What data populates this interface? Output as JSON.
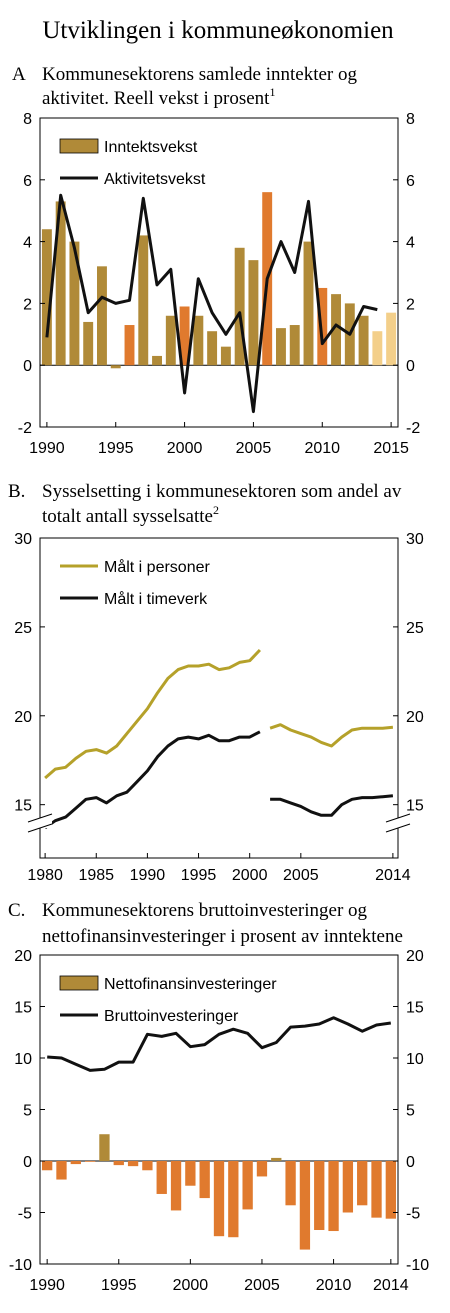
{
  "page_title": "Utviklingen i kommuneøkonomien",
  "colors": {
    "bar_gold": "#b08a38",
    "bar_orange": "#e07a2e",
    "bar_light": "#f3cf8a",
    "line_black": "#111111",
    "line_olive": "#b5a12a",
    "border": "#000000"
  },
  "chart_data": [
    {
      "id": "A",
      "type": "bar",
      "panel_letter": "A",
      "title_line1": "Kommunesektorens samlede inntekter og",
      "title_line2": "aktivitet. Reell vekst i prosent",
      "title_sup": "1",
      "ylim": [
        -2,
        8
      ],
      "yticks": [
        -2,
        0,
        2,
        4,
        6,
        8
      ],
      "xlim": [
        1989.5,
        2015.5
      ],
      "xticks": [
        1990,
        1995,
        2000,
        2005,
        2010,
        2015
      ],
      "legend_placement": "top-left",
      "categories": [
        1990,
        1991,
        1992,
        1993,
        1994,
        1995,
        1996,
        1997,
        1998,
        1999,
        2000,
        2001,
        2002,
        2003,
        2004,
        2005,
        2006,
        2007,
        2008,
        2009,
        2010,
        2011,
        2012,
        2013,
        2014,
        2015
      ],
      "series": [
        {
          "name": "Inntektsvekst",
          "kind": "bar",
          "values": [
            4.4,
            5.3,
            4.0,
            1.4,
            3.2,
            -0.1,
            1.3,
            4.2,
            0.3,
            1.6,
            1.9,
            1.6,
            1.1,
            0.6,
            3.8,
            3.4,
            5.6,
            1.2,
            1.3,
            4.0,
            2.5,
            2.3,
            2.0,
            1.6,
            1.1,
            1.7
          ],
          "colors": [
            "gold",
            "gold",
            "gold",
            "gold",
            "gold",
            "gold",
            "orange",
            "gold",
            "gold",
            "gold",
            "orange",
            "gold",
            "gold",
            "gold",
            "gold",
            "gold",
            "orange",
            "gold",
            "gold",
            "gold",
            "orange",
            "gold",
            "gold",
            "gold",
            "light",
            "light"
          ]
        },
        {
          "name": "Aktivitetsvekst",
          "kind": "line",
          "values": [
            0.9,
            5.5,
            3.8,
            1.7,
            2.2,
            2.0,
            2.1,
            5.4,
            2.6,
            3.1,
            -0.9,
            2.8,
            1.7,
            1.0,
            1.7,
            -1.5,
            2.8,
            4.0,
            3.0,
            5.3,
            0.7,
            1.3,
            1.0,
            1.9,
            1.8,
            null
          ]
        }
      ]
    },
    {
      "id": "B",
      "type": "line",
      "panel_letter": "B.",
      "title_line1": "Sysselsetting i kommunesektoren som andel av",
      "title_line2": "totalt antall sysselsatte",
      "title_sup": "2",
      "ylim": [
        12,
        30
      ],
      "yticks": [
        15,
        20,
        25,
        30
      ],
      "axis_break": true,
      "xlim": [
        1979.5,
        2014.5
      ],
      "xticks": [
        1980,
        1985,
        1990,
        1995,
        2000,
        2005,
        2014
      ],
      "legend_placement": "top-left",
      "series": [
        {
          "name": "Målt i personer",
          "color_key": "line_olive",
          "segments": [
            {
              "x": [
                1980,
                1981,
                1982,
                1983,
                1984,
                1985,
                1986,
                1987,
                1988,
                1989,
                1990,
                1991,
                1992,
                1993,
                1994,
                1995,
                1996,
                1997,
                1998,
                1999,
                2000,
                2001
              ],
              "y": [
                16.5,
                17.0,
                17.1,
                17.6,
                18.0,
                18.1,
                17.9,
                18.3,
                19.0,
                19.7,
                20.4,
                21.3,
                22.1,
                22.6,
                22.8,
                22.8,
                22.9,
                22.6,
                22.7,
                23.0,
                23.1,
                23.7
              ]
            },
            {
              "x": [
                2002,
                2003,
                2004,
                2005,
                2006,
                2007,
                2008,
                2009,
                2010,
                2011,
                2012,
                2013,
                2014
              ],
              "y": [
                19.3,
                19.5,
                19.2,
                19.0,
                18.8,
                18.5,
                18.3,
                18.8,
                19.2,
                19.3,
                19.3,
                19.3,
                19.35
              ]
            }
          ]
        },
        {
          "name": "Målt i timeverk",
          "color_key": "line_black",
          "segments": [
            {
              "x": [
                1980,
                1981,
                1982,
                1983,
                1984,
                1985,
                1986,
                1987,
                1988,
                1989,
                1990,
                1991,
                1992,
                1993,
                1994,
                1995,
                1996,
                1997,
                1998,
                1999,
                2000,
                2001
              ],
              "y": [
                13.7,
                14.1,
                14.3,
                14.8,
                15.3,
                15.4,
                15.1,
                15.5,
                15.7,
                16.3,
                16.9,
                17.7,
                18.3,
                18.7,
                18.8,
                18.7,
                18.9,
                18.6,
                18.6,
                18.8,
                18.8,
                19.1
              ]
            },
            {
              "x": [
                2002,
                2003,
                2004,
                2005,
                2006,
                2007,
                2008,
                2009,
                2010,
                2011,
                2012,
                2013,
                2014
              ],
              "y": [
                15.3,
                15.3,
                15.1,
                14.9,
                14.6,
                14.4,
                14.4,
                15.0,
                15.3,
                15.4,
                15.4,
                15.45,
                15.5
              ]
            }
          ]
        }
      ]
    },
    {
      "id": "C",
      "type": "bar",
      "panel_letter": "C.",
      "title_line1": "Kommunesektorens bruttoinvesteringer og",
      "title_line2": "nettofinansinvesteringer i prosent av inntektene",
      "title_sup": "",
      "ylim": [
        -10,
        20
      ],
      "yticks": [
        -10,
        -5,
        0,
        5,
        10,
        15,
        20
      ],
      "xlim": [
        1989.5,
        2014.5
      ],
      "xticks": [
        1990,
        1995,
        2000,
        2005,
        2010,
        2014
      ],
      "legend_placement": "top-left",
      "categories": [
        1990,
        1991,
        1992,
        1993,
        1994,
        1995,
        1996,
        1997,
        1998,
        1999,
        2000,
        2001,
        2002,
        2003,
        2004,
        2005,
        2006,
        2007,
        2008,
        2009,
        2010,
        2011,
        2012,
        2013,
        2014
      ],
      "series": [
        {
          "name": "Nettofinansinvesteringer",
          "kind": "bar",
          "values": [
            -0.9,
            -1.8,
            -0.3,
            0.0,
            2.6,
            -0.4,
            -0.5,
            -0.9,
            -3.2,
            -4.8,
            -2.4,
            -3.6,
            -7.3,
            -7.4,
            -4.7,
            -1.5,
            0.3,
            -4.3,
            -8.6,
            -6.7,
            -6.8,
            -5.0,
            -4.3,
            -5.5,
            -5.6
          ],
          "colors": [
            "orange",
            "orange",
            "orange",
            "orange",
            "gold",
            "orange",
            "orange",
            "orange",
            "orange",
            "orange",
            "orange",
            "orange",
            "orange",
            "orange",
            "orange",
            "orange",
            "gold",
            "orange",
            "orange",
            "orange",
            "orange",
            "orange",
            "orange",
            "orange",
            "orange"
          ]
        },
        {
          "name": "Bruttoinvesteringer",
          "kind": "line",
          "values": [
            10.1,
            10.0,
            9.4,
            8.8,
            8.9,
            9.6,
            9.6,
            12.3,
            12.1,
            12.4,
            11.1,
            11.3,
            12.3,
            12.8,
            12.4,
            11.0,
            11.5,
            13.0,
            13.1,
            13.3,
            13.9,
            13.3,
            12.6,
            13.2,
            13.4
          ]
        }
      ]
    }
  ]
}
